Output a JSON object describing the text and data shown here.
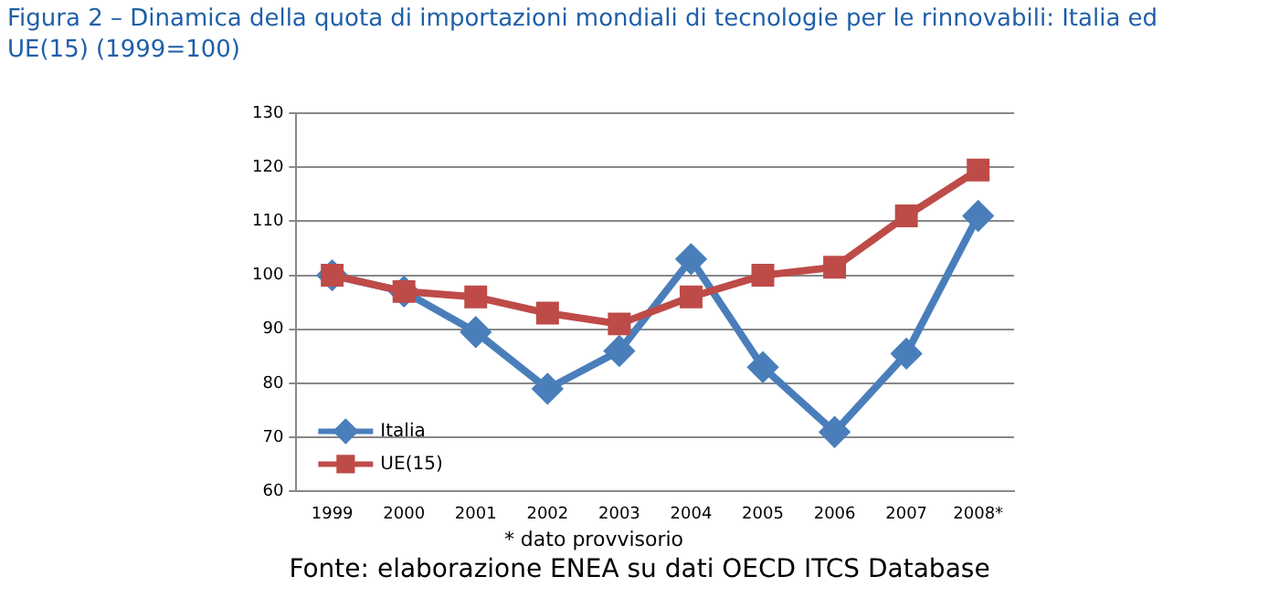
{
  "chart_data": {
    "type": "line",
    "title": "Figura 2 – Dinamica della quota di importazioni mondiali di tecnologie per le rinnovabili: Italia ed UE(15) (1999=100)",
    "categories": [
      "1999",
      "2000",
      "2001",
      "2002",
      "2003",
      "2004",
      "2005",
      "2006",
      "2007",
      "2008*"
    ],
    "series": [
      {
        "name": "Italia",
        "color": "#4a7ebb",
        "marker": "diamond",
        "values": [
          100,
          97,
          89.5,
          79,
          86,
          103,
          83,
          71,
          85.5,
          111
        ]
      },
      {
        "name": "UE(15)",
        "color": "#be4b48",
        "marker": "square",
        "values": [
          100,
          97,
          96,
          93,
          91,
          96,
          100,
          101.5,
          111,
          119.5
        ]
      }
    ],
    "ylim": [
      60,
      130
    ],
    "yticks": [
      60,
      70,
      80,
      90,
      100,
      110,
      120,
      130
    ],
    "grid": "y",
    "legend": "bottom left",
    "annotations": [
      "* dato provvisorio",
      "Fonte: elaborazione ENEA su dati OECD ITCS Database"
    ]
  }
}
